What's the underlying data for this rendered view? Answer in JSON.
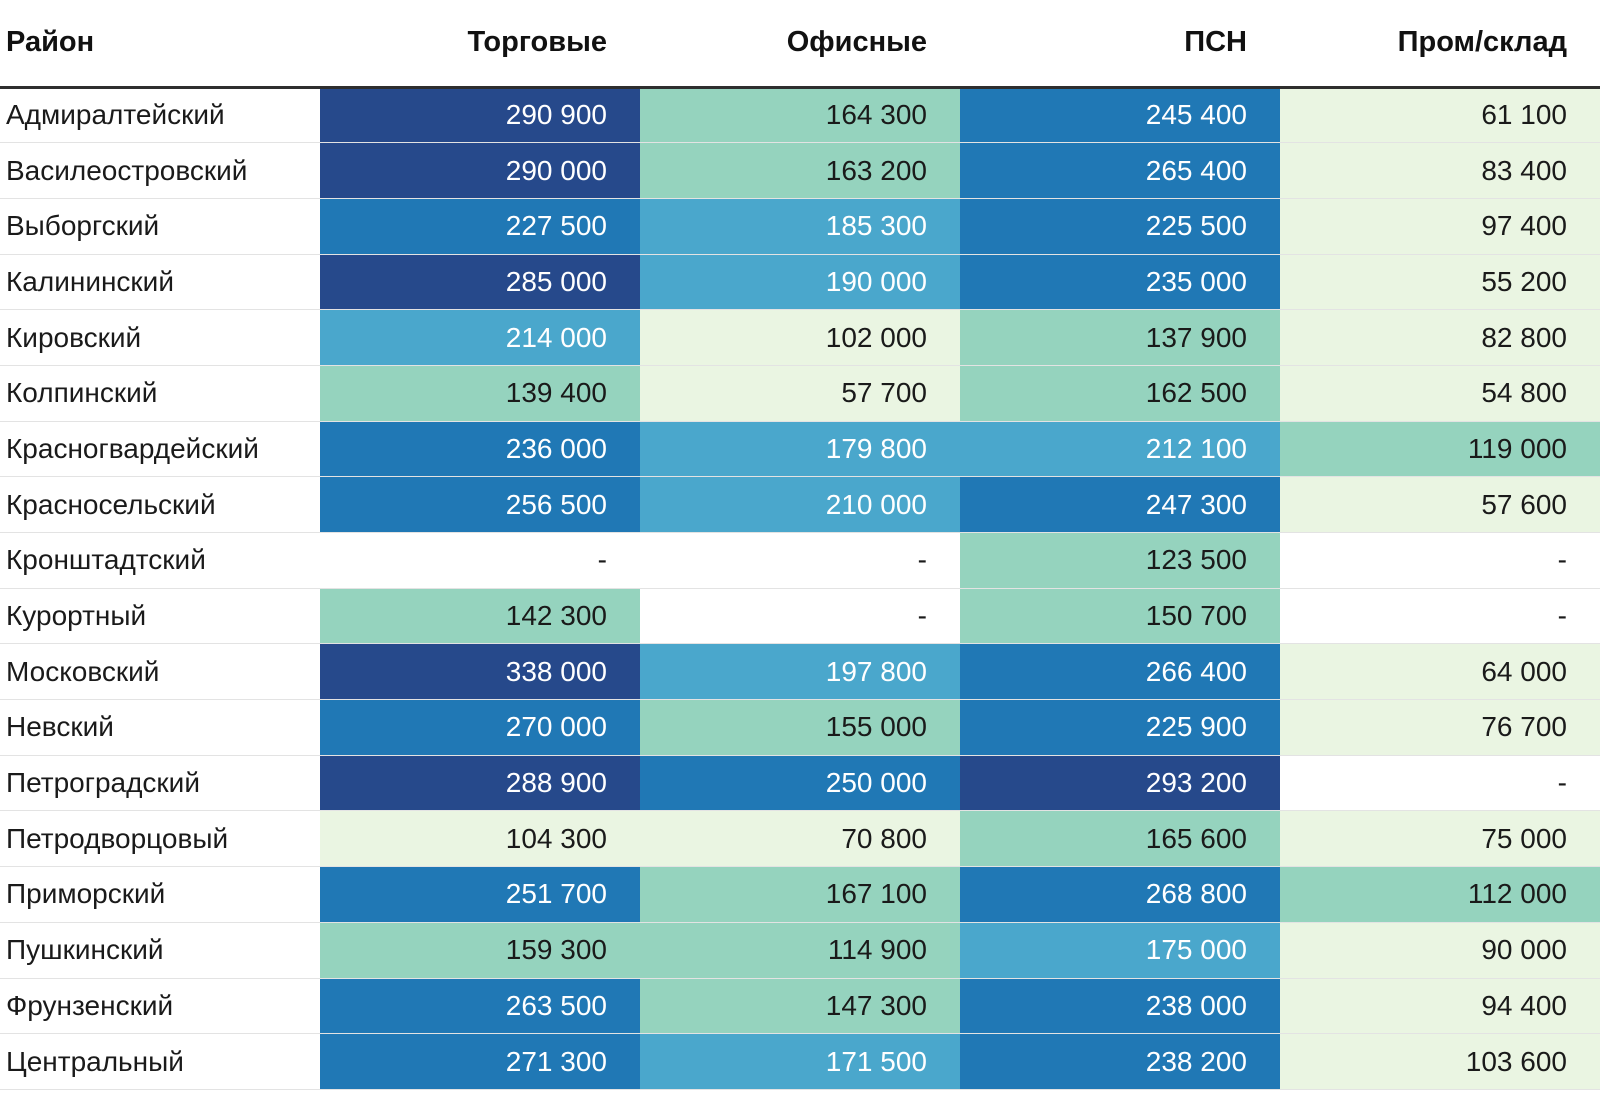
{
  "chart_data": {
    "type": "heatmap",
    "columns": [
      "Район",
      "Торговые",
      "Офисные",
      "ПСН",
      "Пром/склад"
    ],
    "rows": [
      {
        "district": "Адмиралтейский",
        "values": [
          290900,
          164300,
          245400,
          61100
        ]
      },
      {
        "district": "Василеостровский",
        "values": [
          290000,
          163200,
          265400,
          83400
        ]
      },
      {
        "district": "Выборгский",
        "values": [
          227500,
          185300,
          225500,
          97400
        ]
      },
      {
        "district": "Калининский",
        "values": [
          285000,
          190000,
          235000,
          55200
        ]
      },
      {
        "district": "Кировский",
        "values": [
          214000,
          102000,
          137900,
          82800
        ]
      },
      {
        "district": "Колпинский",
        "values": [
          139400,
          57700,
          162500,
          54800
        ]
      },
      {
        "district": "Красногвардейский",
        "values": [
          236000,
          179800,
          212100,
          119000
        ]
      },
      {
        "district": "Красносельский",
        "values": [
          256500,
          210000,
          247300,
          57600
        ]
      },
      {
        "district": "Кронштадтский",
        "values": [
          null,
          null,
          123500,
          null
        ]
      },
      {
        "district": "Курортный",
        "values": [
          142300,
          null,
          150700,
          null
        ]
      },
      {
        "district": "Московский",
        "values": [
          338000,
          197800,
          266400,
          64000
        ]
      },
      {
        "district": "Невский",
        "values": [
          270000,
          155000,
          225900,
          76700
        ]
      },
      {
        "district": "Петроградский",
        "values": [
          288900,
          250000,
          293200,
          null
        ]
      },
      {
        "district": "Петродворцовый",
        "values": [
          104300,
          70800,
          165600,
          75000
        ]
      },
      {
        "district": "Приморский",
        "values": [
          251700,
          167100,
          268800,
          112000
        ]
      },
      {
        "district": "Пушкинский",
        "values": [
          159300,
          114900,
          175000,
          90000
        ]
      },
      {
        "district": "Фрунзенский",
        "values": [
          263500,
          147300,
          238000,
          94400
        ]
      },
      {
        "district": "Центральный",
        "values": [
          271300,
          171500,
          238200,
          103600
        ]
      }
    ],
    "color_scale": {
      "min": 54800,
      "max": 338000,
      "bins": 5,
      "bin_colors": [
        "#EAF5E2",
        "#95D3BE",
        "#4AA7CC",
        "#2078B5",
        "#26498B"
      ],
      "light_text_from_bin": 2
    }
  },
  "format": {
    "thousands_separator": " ",
    "empty_placeholder": "-"
  },
  "palette": {
    "text_dark": "#1A1A1A",
    "text_light": "#FFFFFF",
    "header_text": "#111111",
    "header_border": "#2E2E2E",
    "row_border": "#E3E3E3",
    "empty_cell_bg": "#FFFFFF"
  }
}
